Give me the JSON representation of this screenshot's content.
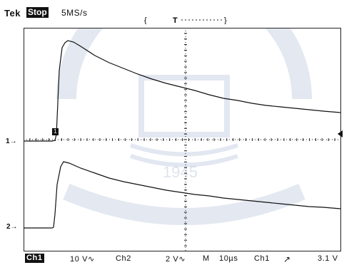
{
  "header": {
    "brand": "Tek",
    "acq_state": "Stop",
    "sample_rate": "5MS/s",
    "trigger_position_label": "T"
  },
  "screen": {
    "divisions_x": 10,
    "divisions_y": 8,
    "grid_color": "#222222"
  },
  "channels": {
    "ch1_marker": "1",
    "ch2_marker": "2"
  },
  "status_bar": {
    "ch1_label": "Ch1",
    "ch1_scale": "10 V",
    "ch2_label": "Ch2",
    "ch2_scale": "2 V",
    "timebase_mode": "M",
    "timebase": "10µs",
    "trigger_source": "Ch1",
    "trigger_slope_icon": "rising-edge-icon",
    "trigger_level": "3.1 V"
  },
  "watermark": {
    "year": "1945"
  }
}
